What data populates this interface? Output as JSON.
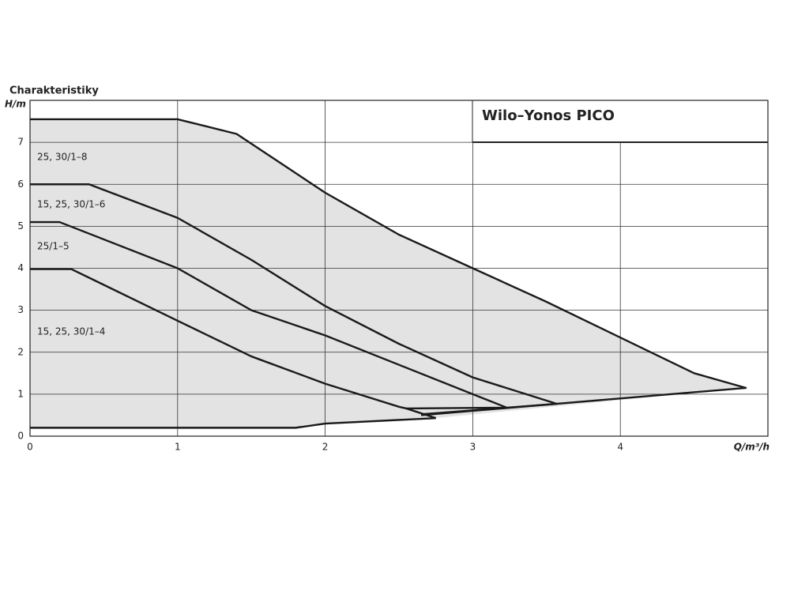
{
  "chart_data": {
    "type": "line",
    "title": "Wilo–Yonos PICO",
    "heading": "Charakteristiky",
    "y_label": "H/m",
    "x_label": "Q/m³/h",
    "xlim": [
      0,
      5
    ],
    "ylim": [
      0,
      8
    ],
    "xticks": [
      0,
      1,
      2,
      3,
      4
    ],
    "yticks": [
      0,
      1,
      2,
      3,
      4,
      5,
      6,
      7
    ],
    "grid": true,
    "area_color": "#e3e3e3",
    "series": [
      {
        "name": "25, 30/1–8",
        "color": "#1a1a1a",
        "x": [
          0,
          1,
          1.4,
          2,
          2.5,
          3,
          3.5,
          4,
          4.5,
          4.85,
          2.65
        ],
        "values": [
          7.55,
          7.55,
          7.2,
          5.8,
          4.8,
          4.0,
          3.2,
          2.35,
          1.5,
          1.15,
          0.5
        ]
      },
      {
        "name": "15, 25, 30/1–6",
        "color": "#1a1a1a",
        "x": [
          0,
          0.4,
          1,
          1.5,
          2,
          2.5,
          3,
          3.57,
          2.65
        ],
        "values": [
          6,
          6,
          5.2,
          4.2,
          3.1,
          2.2,
          1.4,
          0.77,
          0.52
        ]
      },
      {
        "name": "25/1–5",
        "color": "#1a1a1a",
        "x": [
          0,
          0.2,
          1,
          1.5,
          2,
          2.5,
          3,
          3.23,
          2.55
        ],
        "values": [
          5.1,
          5.1,
          4.0,
          3.0,
          2.4,
          1.7,
          1.0,
          0.68,
          0.66
        ]
      },
      {
        "name": "15, 25, 30/1–4",
        "color": "#1a1a1a",
        "x": [
          0,
          0.28,
          1,
          1.5,
          2,
          2.5,
          2.55,
          2.75
        ],
        "values": [
          3.98,
          3.98,
          2.75,
          1.9,
          1.25,
          0.7,
          0.66,
          0.43
        ]
      },
      {
        "color": "#1a1a1a",
        "x": [
          0,
          1.8,
          2.0,
          2.75
        ],
        "values": [
          0.2,
          0.2,
          0.3,
          0.43
        ]
      }
    ]
  }
}
